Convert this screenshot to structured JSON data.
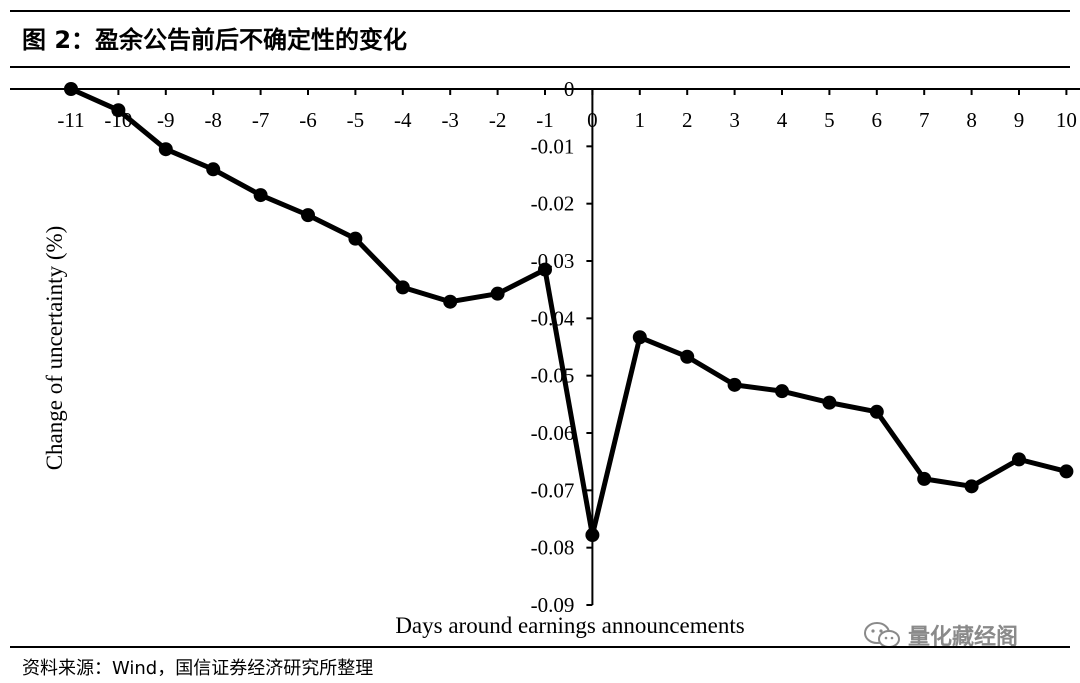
{
  "header": {
    "title": "图 2：盈余公告前后不确定性的变化"
  },
  "footer": {
    "source": "资料来源：Wind，国信证券经济研究所整理"
  },
  "watermark": {
    "text": "量化藏经阁",
    "icon": "wechat-icon"
  },
  "chart_data": {
    "type": "line",
    "title": "",
    "xlabel": "Days around earnings announcements",
    "ylabel": "Change of uncertainty (%)",
    "xlim": [
      -11,
      10
    ],
    "ylim": [
      -0.09,
      0
    ],
    "x_ticks": [
      "-11",
      "-10",
      "-9",
      "-8",
      "-7",
      "-6",
      "-5",
      "-4",
      "-3",
      "-2",
      "-1",
      "0",
      "1",
      "2",
      "3",
      "4",
      "5",
      "6",
      "7",
      "8",
      "9",
      "10"
    ],
    "y_ticks": [
      "0",
      "-0.01",
      "-0.02",
      "-0.03",
      "-0.04",
      "-0.05",
      "-0.06",
      "-0.07",
      "-0.08",
      "-0.09"
    ],
    "x": [
      -11,
      -10,
      -9,
      -8,
      -7,
      -6,
      -5,
      -4,
      -3,
      -2,
      -1,
      0,
      1,
      2,
      3,
      4,
      5,
      6,
      7,
      8,
      9,
      10
    ],
    "series": [
      {
        "color": "#000000",
        "values": [
          0,
          -0.0037,
          -0.0105,
          -0.014,
          -0.0185,
          -0.022,
          -0.0261,
          -0.0346,
          -0.0371,
          -0.0357,
          -0.0315,
          -0.0778,
          -0.0433,
          -0.0467,
          -0.0516,
          -0.0527,
          -0.0547,
          -0.0563,
          -0.068,
          -0.0693,
          -0.0646,
          -0.0667
        ]
      }
    ]
  }
}
